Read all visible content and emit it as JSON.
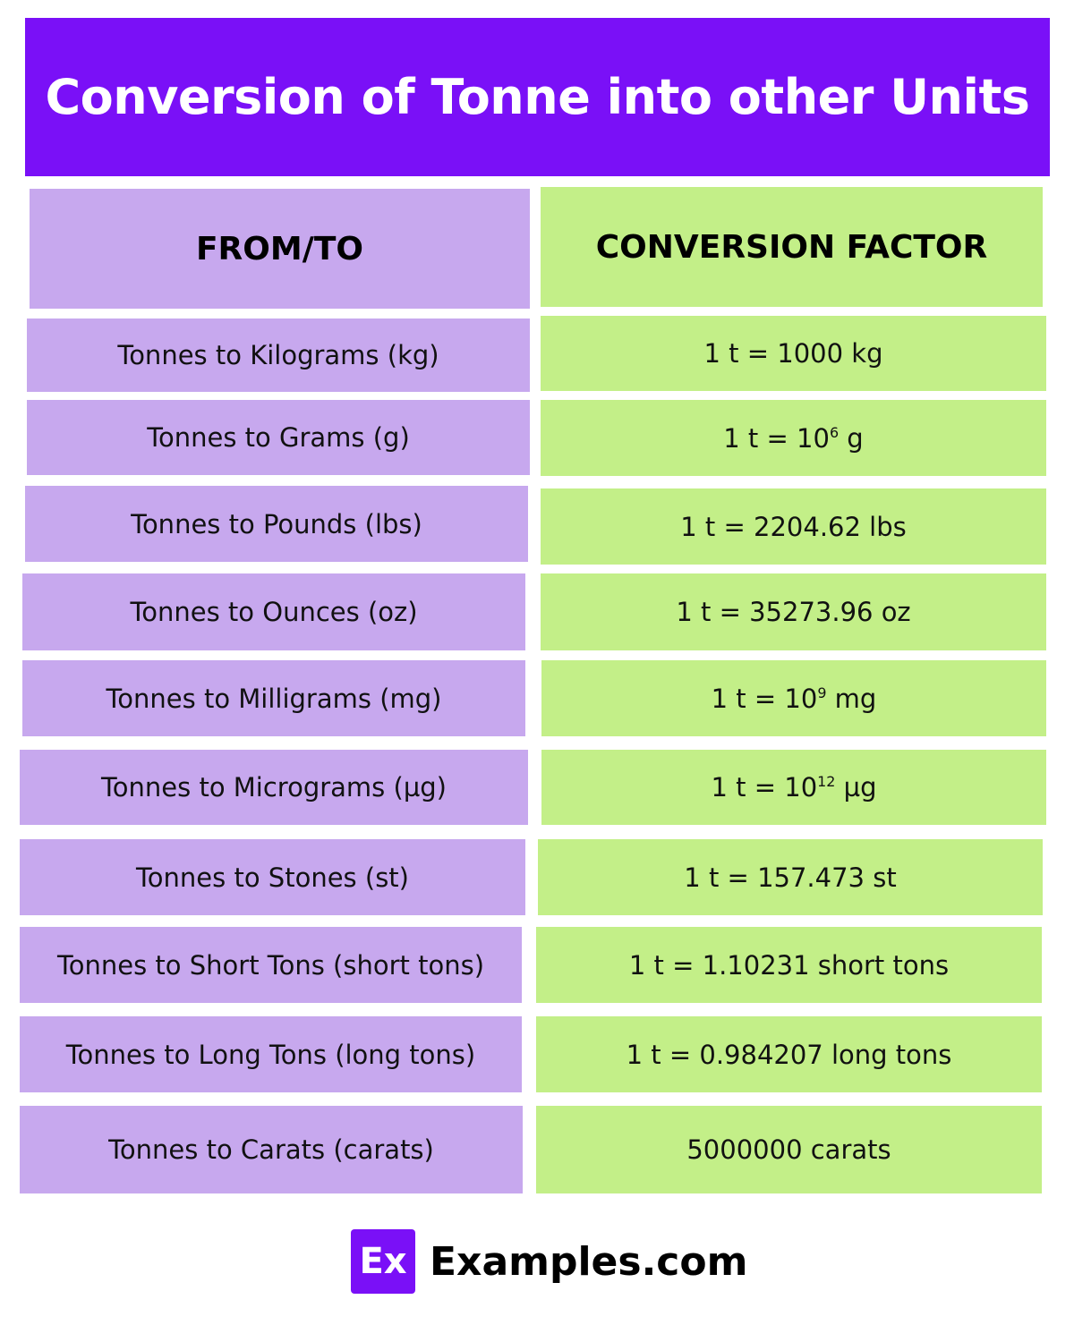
{
  "title": "Conversion of Tonne into other Units",
  "colors": {
    "title_bg": "#7a10f7",
    "from_bg": "#c7a8ee",
    "to_bg": "#c3ef88"
  },
  "table": {
    "headers": {
      "from": "FROM/TO",
      "to": "CONVERSION FACTOR"
    },
    "rows": [
      {
        "from": "Tonnes to Kilograms (kg)",
        "to": {
          "base": "1 t = 1000 kg",
          "sup": "",
          "unit": ""
        }
      },
      {
        "from": "Tonnes to Grams (g)",
        "to": {
          "base": "1 t = 10",
          "sup": "6",
          "unit": " g"
        }
      },
      {
        "from": "Tonnes to Pounds (lbs)",
        "to": {
          "base": "1 t = 2204.62 lbs",
          "sup": "",
          "unit": ""
        }
      },
      {
        "from": "Tonnes to Ounces (oz)",
        "to": {
          "base": "1 t = 35273.96 oz",
          "sup": "",
          "unit": ""
        }
      },
      {
        "from": "Tonnes to Milligrams (mg)",
        "to": {
          "base": "1 t = 10",
          "sup": "9",
          "unit": " mg"
        }
      },
      {
        "from": "Tonnes to Micrograms (µg)",
        "to": {
          "base": "1 t = 10",
          "sup": "12",
          "unit": " µg"
        }
      },
      {
        "from": "Tonnes to Stones (st)",
        "to": {
          "base": "1 t = 157.473 st",
          "sup": "",
          "unit": ""
        }
      },
      {
        "from": "Tonnes to Short Tons (short tons)",
        "to": {
          "base": "1 t = 1.10231 short tons",
          "sup": "",
          "unit": ""
        }
      },
      {
        "from": "Tonnes to Long Tons (long tons)",
        "to": {
          "base": "1 t = 0.984207 long tons",
          "sup": "",
          "unit": ""
        }
      },
      {
        "from": "Tonnes to Carats (carats)",
        "to": {
          "base": "5000000 carats",
          "sup": "",
          "unit": ""
        }
      }
    ]
  },
  "logo": {
    "mark": "Ex",
    "text": "Examples.com"
  }
}
